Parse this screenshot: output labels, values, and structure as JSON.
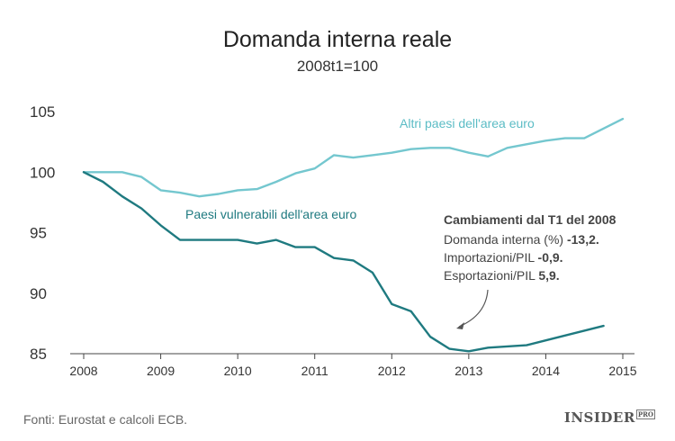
{
  "chart_data": {
    "type": "line",
    "title": "Domanda interna reale",
    "subtitle": "2008t1=100",
    "xlabel": "",
    "ylabel": "",
    "xlim": [
      2008,
      2015.1
    ],
    "ylim": [
      85,
      105
    ],
    "x_ticks": [
      "2008",
      "2009",
      "2010",
      "2011",
      "2012",
      "2013",
      "2014",
      "2015"
    ],
    "y_ticks": [
      "85",
      "90",
      "95",
      "100",
      "105"
    ],
    "grid": false,
    "series": [
      {
        "name": "Altri paesi dell'area euro",
        "color": "#74c7cf",
        "points": [
          [
            2008.0,
            100.0
          ],
          [
            2008.25,
            100.0
          ],
          [
            2008.5,
            100.0
          ],
          [
            2008.75,
            99.6
          ],
          [
            2009.0,
            98.5
          ],
          [
            2009.25,
            98.3
          ],
          [
            2009.5,
            98.0
          ],
          [
            2009.75,
            98.2
          ],
          [
            2010.0,
            98.5
          ],
          [
            2010.25,
            98.6
          ],
          [
            2010.5,
            99.2
          ],
          [
            2010.75,
            99.9
          ],
          [
            2011.0,
            100.3
          ],
          [
            2011.25,
            101.4
          ],
          [
            2011.5,
            101.2
          ],
          [
            2011.75,
            101.4
          ],
          [
            2012.0,
            101.6
          ],
          [
            2012.25,
            101.9
          ],
          [
            2012.5,
            102.0
          ],
          [
            2012.75,
            102.0
          ],
          [
            2013.0,
            101.6
          ],
          [
            2013.25,
            101.3
          ],
          [
            2013.5,
            102.0
          ],
          [
            2013.75,
            102.3
          ],
          [
            2014.0,
            102.6
          ],
          [
            2014.25,
            102.8
          ],
          [
            2014.5,
            102.8
          ],
          [
            2014.75,
            103.6
          ],
          [
            2015.0,
            104.4
          ]
        ]
      },
      {
        "name": "Paesi  vulnerabili dell'area euro",
        "color": "#1f7a80",
        "points": [
          [
            2008.0,
            100.0
          ],
          [
            2008.25,
            99.2
          ],
          [
            2008.5,
            98.0
          ],
          [
            2008.75,
            97.0
          ],
          [
            2009.0,
            95.6
          ],
          [
            2009.25,
            94.4
          ],
          [
            2009.5,
            94.4
          ],
          [
            2009.75,
            94.4
          ],
          [
            2010.0,
            94.4
          ],
          [
            2010.25,
            94.1
          ],
          [
            2010.5,
            94.4
          ],
          [
            2010.75,
            93.8
          ],
          [
            2011.0,
            93.8
          ],
          [
            2011.25,
            92.9
          ],
          [
            2011.5,
            92.7
          ],
          [
            2011.75,
            91.7
          ],
          [
            2012.0,
            89.1
          ],
          [
            2012.25,
            88.5
          ],
          [
            2012.5,
            86.4
          ],
          [
            2012.75,
            85.4
          ],
          [
            2013.0,
            85.2
          ],
          [
            2013.25,
            85.5
          ],
          [
            2013.5,
            85.6
          ],
          [
            2013.75,
            85.7
          ],
          [
            2014.0,
            86.1
          ],
          [
            2014.25,
            86.5
          ],
          [
            2014.5,
            86.9
          ],
          [
            2014.75,
            87.3
          ]
        ]
      }
    ],
    "annotation": {
      "title": "Cambiamenti dal T1 del 2008",
      "lines": [
        {
          "label": "Domanda interna (%) ",
          "value": "-13,2."
        },
        {
          "label": "Importazioni/PIL ",
          "value": "-0,9."
        },
        {
          "label": "Esportazioni/PIL ",
          "value": "5,9."
        }
      ]
    }
  },
  "footer": {
    "source": "Fonti: Eurostat e calcoli ECB.",
    "brand": "INSIDER",
    "brand_suffix": "PRO"
  },
  "colors": {
    "axis": "#444444",
    "altri": "#74c7cf",
    "vulnerabili": "#1f7a80",
    "annotation_arrow": "#555555"
  }
}
